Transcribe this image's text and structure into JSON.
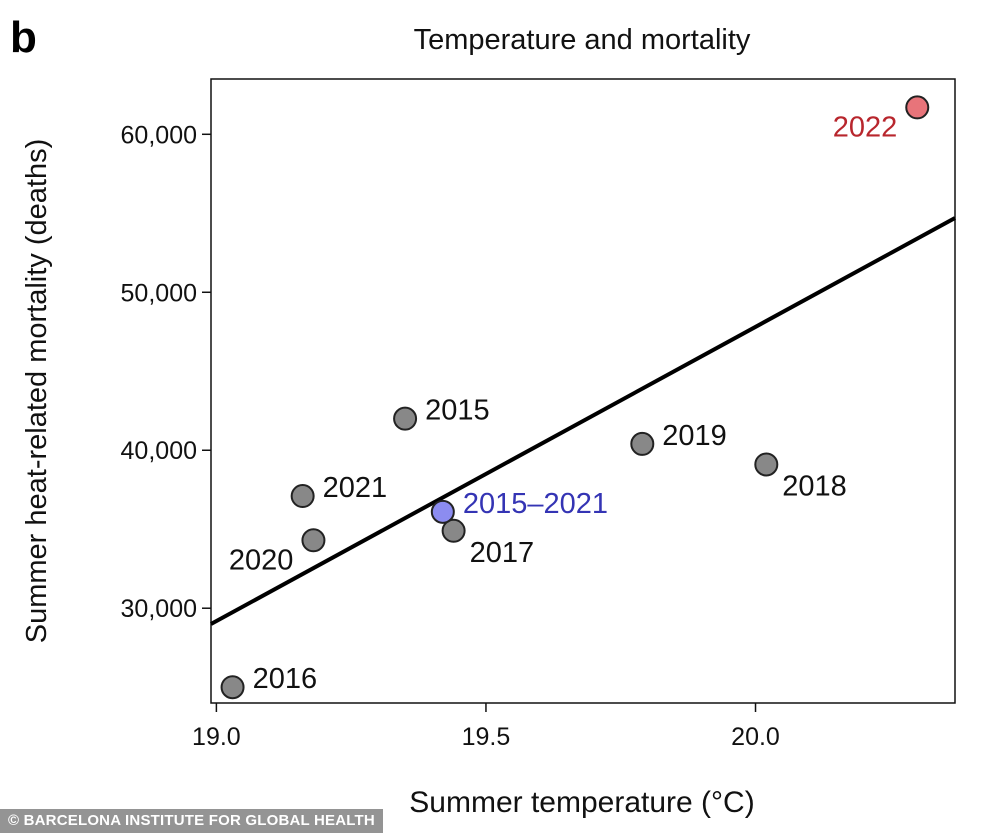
{
  "panel_label": "b",
  "credit": "© BARCELONA INSTITUTE FOR GLOBAL HEALTH",
  "colors": {
    "point_gray": "#888888",
    "point_red": "#e8747a",
    "label_red": "#b8262d",
    "point_blue": "#8c8cf0",
    "label_blue": "#3434b4",
    "line": "#000000"
  },
  "chart_data": {
    "type": "scatter",
    "title": "Temperature and mortality",
    "xlabel": "Summer temperature (°C)",
    "ylabel": "Summer heat-related mortality (deaths)",
    "xlim": [
      18.99,
      20.37
    ],
    "ylim": [
      24000,
      63500
    ],
    "x_ticks": [
      19.0,
      19.5,
      20.0
    ],
    "x_tick_labels": [
      "19.0",
      "19.5",
      "20.0"
    ],
    "y_ticks": [
      30000,
      40000,
      50000,
      60000
    ],
    "y_tick_labels": [
      "30,000",
      "40,000",
      "50,000",
      "60,000"
    ],
    "grid": false,
    "points": [
      {
        "label": "2015",
        "x": 19.35,
        "y": 42000,
        "color": "gray",
        "label_pos": "right"
      },
      {
        "label": "2016",
        "x": 19.03,
        "y": 25000,
        "color": "gray",
        "label_pos": "right"
      },
      {
        "label": "2017",
        "x": 19.44,
        "y": 34900,
        "color": "gray",
        "label_pos": "below-right"
      },
      {
        "label": "2018",
        "x": 20.02,
        "y": 39100,
        "color": "gray",
        "label_pos": "below-right"
      },
      {
        "label": "2019",
        "x": 19.79,
        "y": 40400,
        "color": "gray",
        "label_pos": "right"
      },
      {
        "label": "2020",
        "x": 19.18,
        "y": 34300,
        "color": "gray",
        "label_pos": "below-left"
      },
      {
        "label": "2021",
        "x": 19.16,
        "y": 37100,
        "color": "gray",
        "label_pos": "right"
      },
      {
        "label": "2015–2021",
        "x": 19.42,
        "y": 36100,
        "color": "blue",
        "label_pos": "right"
      },
      {
        "label": "2022",
        "x": 20.3,
        "y": 61700,
        "color": "red",
        "label_pos": "below-left"
      }
    ],
    "fit_line": {
      "x": [
        18.99,
        20.37
      ],
      "y": [
        29000,
        54700
      ]
    }
  }
}
